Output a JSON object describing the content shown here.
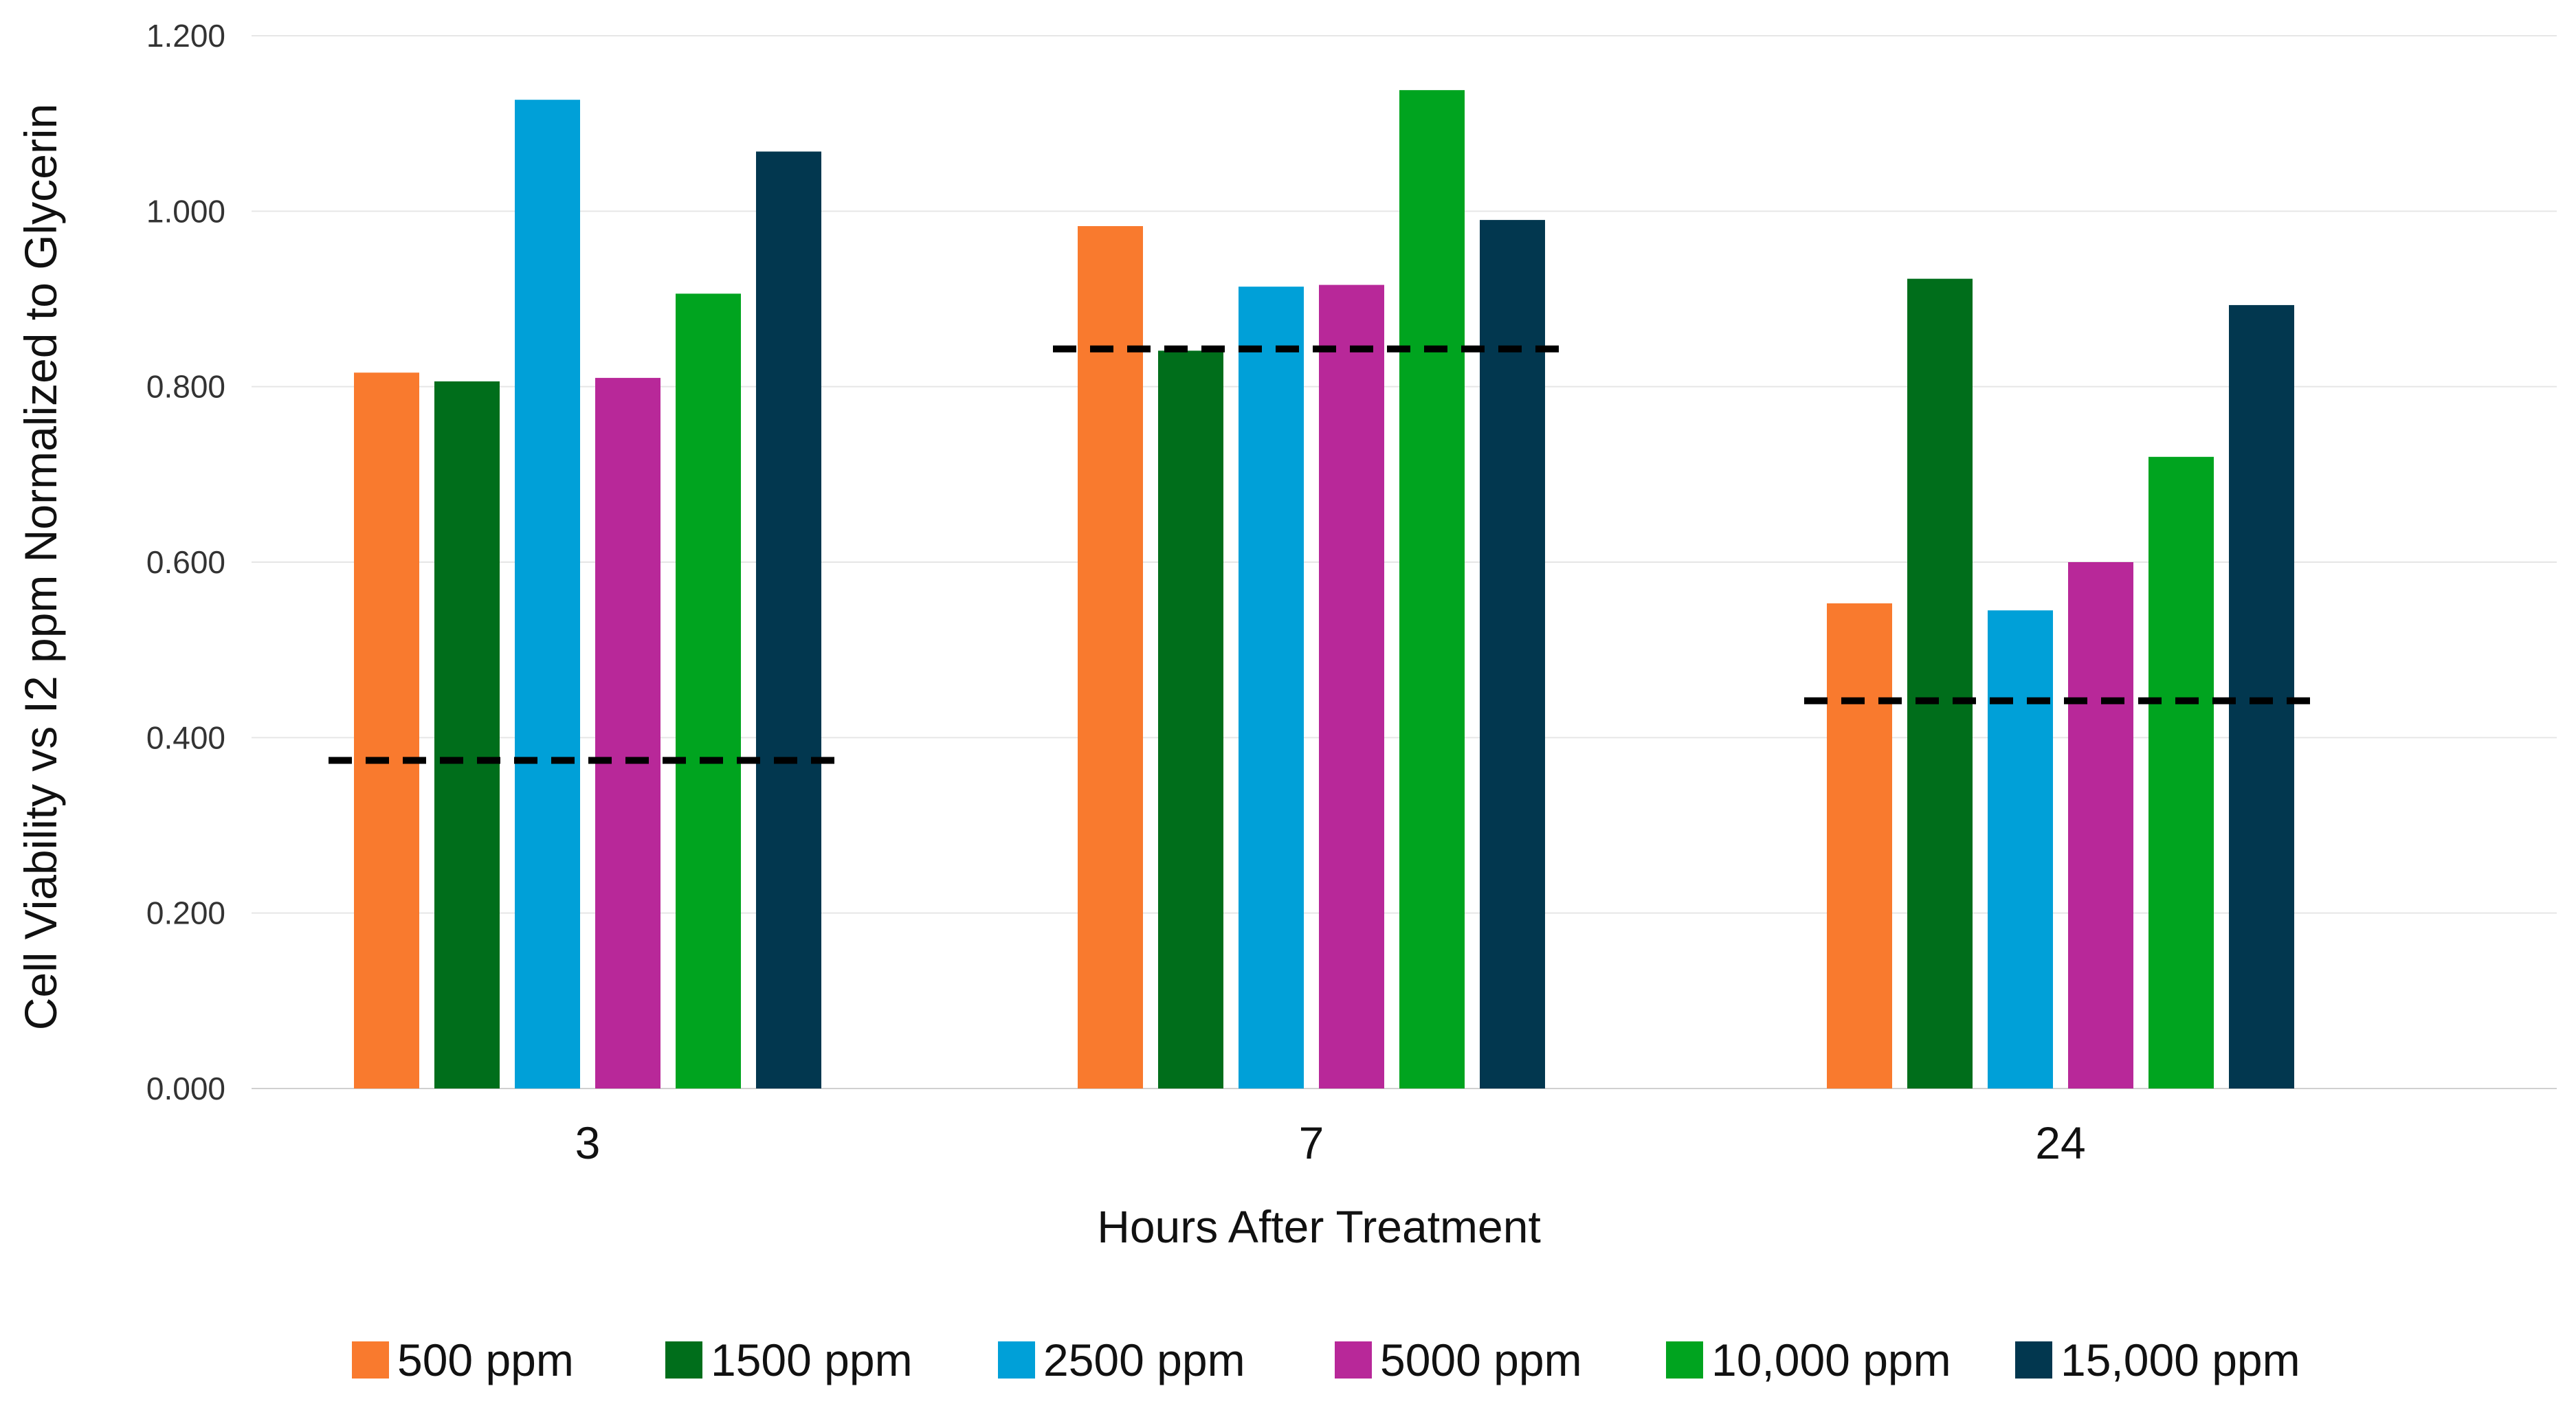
{
  "chart_data": {
    "type": "bar",
    "title": "",
    "xlabel": "Hours After Treatment",
    "ylabel": "Cell Viability vs I2 ppm Normalized to Glycerin",
    "ylim": [
      0,
      1.2
    ],
    "yticks": [
      "0.000",
      "0.200",
      "0.400",
      "0.600",
      "0.800",
      "1.000",
      "1.200"
    ],
    "ytick_values": [
      0,
      0.2,
      0.4,
      0.6,
      0.8,
      1.0,
      1.2
    ],
    "grid": true,
    "legend_position": "bottom",
    "categories": [
      "3",
      "7",
      "24"
    ],
    "series": [
      {
        "name": "500 ppm",
        "color": "#F97A2E",
        "values": [
          0.816,
          0.983,
          0.553
        ]
      },
      {
        "name": "1500 ppm",
        "color": "#006E1B",
        "values": [
          0.806,
          0.841,
          0.923
        ]
      },
      {
        "name": "2500 ppm",
        "color": "#00A0D8",
        "values": [
          1.127,
          0.914,
          0.545
        ]
      },
      {
        "name": "5000 ppm",
        "color": "#B82899",
        "values": [
          0.81,
          0.916,
          0.6
        ]
      },
      {
        "name": "10,000 ppm",
        "color": "#00A41F",
        "values": [
          0.906,
          1.138,
          0.72
        ]
      },
      {
        "name": "15,000 ppm",
        "color": "#02374F",
        "values": [
          1.068,
          0.99,
          0.893
        ]
      }
    ],
    "reference_lines": [
      {
        "category": "3",
        "value": 0.374,
        "style": "dashed",
        "color": "#000000"
      },
      {
        "category": "7",
        "value": 0.843,
        "style": "dashed",
        "color": "#000000"
      },
      {
        "category": "24",
        "value": 0.442,
        "style": "dashed",
        "color": "#000000"
      }
    ]
  }
}
